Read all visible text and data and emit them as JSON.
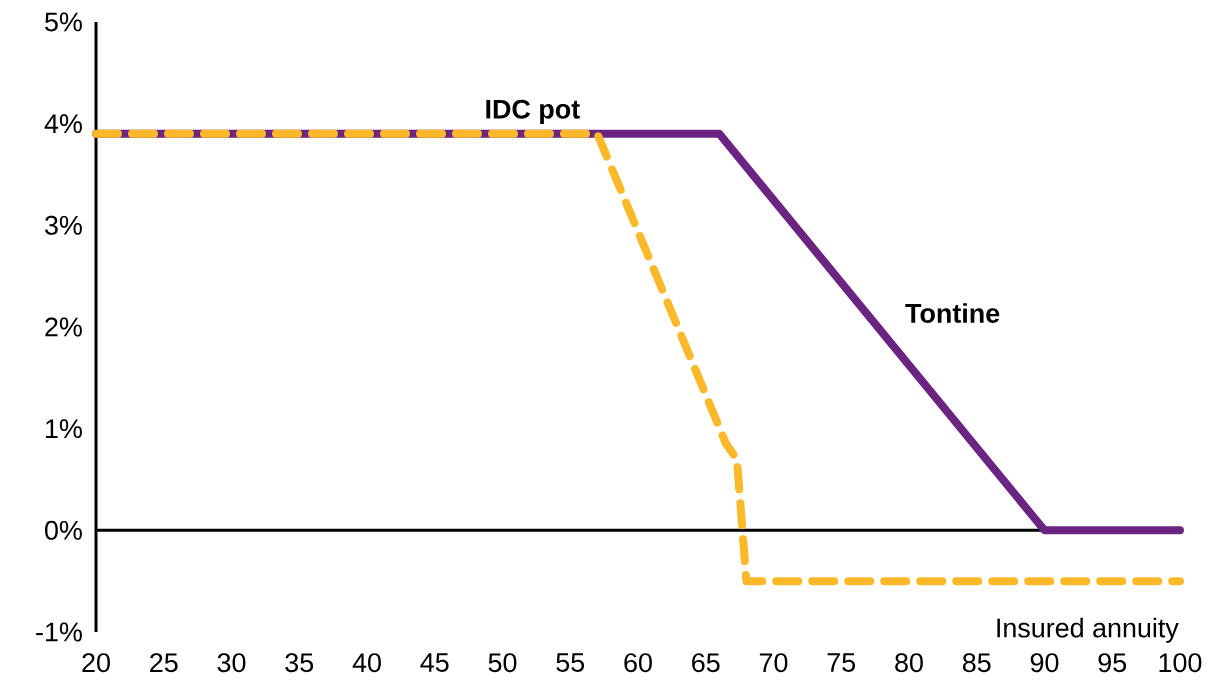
{
  "chart_data": {
    "type": "line",
    "x": [
      20,
      57,
      62,
      66.5,
      67.3,
      68,
      100
    ],
    "series": [
      {
        "name": "Tontine",
        "color": "#6b2481",
        "line_style": "solid",
        "x": [
          20,
          66,
          90,
          100
        ],
        "values": [
          3.9,
          3.9,
          0,
          0
        ]
      },
      {
        "name": "IDC pot",
        "color": "#fbb829",
        "line_style": "dashed",
        "values": [
          3.9,
          3.9,
          2.3,
          0.85,
          0.7,
          -0.5,
          -0.5
        ]
      }
    ],
    "xlim": [
      20,
      100
    ],
    "xticks": [
      20,
      25,
      30,
      35,
      40,
      45,
      50,
      55,
      60,
      65,
      70,
      75,
      80,
      85,
      90,
      95,
      100
    ],
    "ylim": [
      -1,
      5
    ],
    "yticks": [
      {
        "value": -1,
        "label": "-1%"
      },
      {
        "value": 0,
        "label": "0%"
      },
      {
        "value": 1,
        "label": "1%"
      },
      {
        "value": 2,
        "label": "2%"
      },
      {
        "value": 3,
        "label": "3%"
      },
      {
        "value": 4,
        "label": "4%"
      },
      {
        "value": 5,
        "label": "5%"
      }
    ],
    "ref_lines": [
      {
        "axis": "y",
        "value": 0,
        "color": "#000000"
      }
    ],
    "annotations": [
      "Insured annuity"
    ],
    "grid": false,
    "legend": false,
    "marker": "none"
  }
}
